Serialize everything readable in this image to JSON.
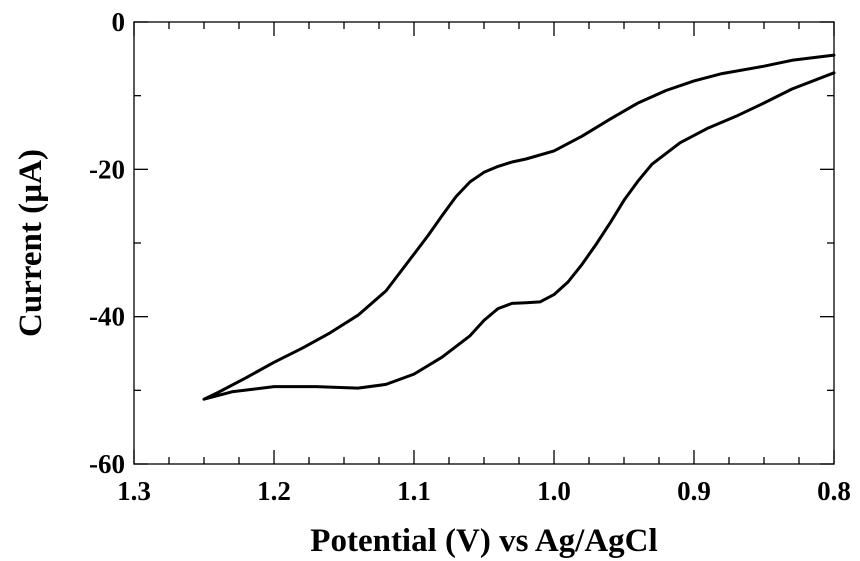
{
  "chart_data": {
    "type": "line",
    "xlabel": "Potential (V) vs Ag/AgCl",
    "ylabel": "Current (µA)",
    "xlim": [
      1.3,
      0.8
    ],
    "ylim": [
      -60,
      0
    ],
    "x_inverted": true,
    "grid": false,
    "x_ticks": [
      1.3,
      1.2,
      1.1,
      1.0,
      0.9,
      0.8
    ],
    "x_tick_labels": [
      "1.3",
      "1.2",
      "1.1",
      "1.0",
      "0.9",
      "0.8"
    ],
    "y_ticks": [
      0,
      -20,
      -40,
      -60
    ],
    "y_tick_labels": [
      "0",
      "-20",
      "-40",
      "-60"
    ],
    "x_minor_step": 0.025,
    "y_minor_step": 10,
    "series": [
      {
        "line_color": "#000000",
        "x": [
          0.8,
          0.83,
          0.85,
          0.88,
          0.9,
          0.92,
          0.94,
          0.96,
          0.98,
          1.0,
          1.02,
          1.03,
          1.04,
          1.05,
          1.06,
          1.07,
          1.08,
          1.09,
          1.1,
          1.11,
          1.12,
          1.14,
          1.16,
          1.18,
          1.2,
          1.22,
          1.24,
          1.25,
          1.23,
          1.2,
          1.17,
          1.14,
          1.12,
          1.1,
          1.08,
          1.06,
          1.05,
          1.04,
          1.03,
          1.02,
          1.01,
          1.0,
          0.99,
          0.98,
          0.97,
          0.96,
          0.95,
          0.94,
          0.93,
          0.91,
          0.89,
          0.87,
          0.85,
          0.83,
          0.8
        ],
        "y": [
          -4.5,
          -5.2,
          -6.0,
          -7.0,
          -8.0,
          -9.3,
          -11.0,
          -13.2,
          -15.5,
          -17.5,
          -18.6,
          -19.0,
          -19.6,
          -20.4,
          -21.7,
          -23.7,
          -26.3,
          -29.0,
          -31.5,
          -34.0,
          -36.5,
          -39.8,
          -42.2,
          -44.3,
          -46.2,
          -48.3,
          -50.3,
          -51.2,
          -50.2,
          -49.5,
          -49.5,
          -49.7,
          -49.2,
          -47.8,
          -45.5,
          -42.6,
          -40.5,
          -38.9,
          -38.2,
          -38.1,
          -38.0,
          -37.0,
          -35.3,
          -32.9,
          -30.2,
          -27.3,
          -24.2,
          -21.6,
          -19.3,
          -16.4,
          -14.4,
          -12.8,
          -11.0,
          -9.1,
          -6.9
        ]
      }
    ]
  }
}
